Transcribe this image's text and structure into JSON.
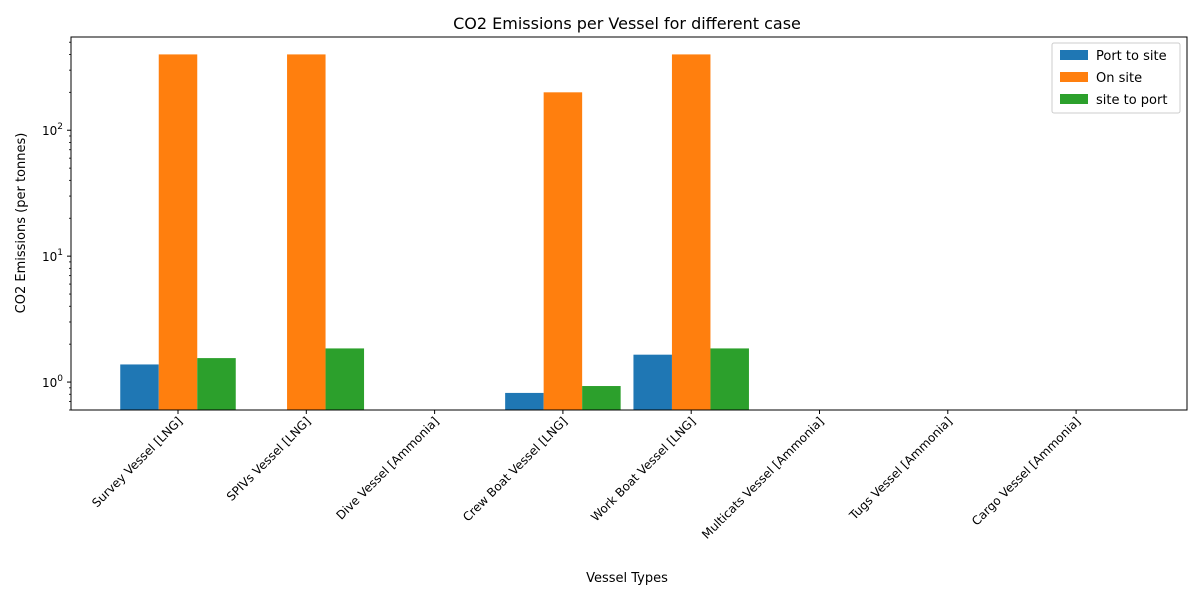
{
  "chart_data": {
    "type": "bar",
    "title": "CO2 Emissions per Vessel for different case",
    "xlabel": "Vessel Types",
    "ylabel": "CO2 Emissions (per tonnes)",
    "yscale": "log",
    "ylim": [
      0.6,
      550
    ],
    "yticks": [
      {
        "value": 1,
        "label": "10",
        "exp": "0"
      },
      {
        "value": 10,
        "label": "10",
        "exp": "1"
      },
      {
        "value": 100,
        "label": "10",
        "exp": "2"
      }
    ],
    "categories": [
      "Survey Vessel [LNG]",
      "SPIVs Vessel [LNG]",
      "Dive Vessel [Ammonia]",
      "Crew Boat Vessel [LNG]",
      "Work Boat Vessel [LNG]",
      "Multicats Vessel [Ammonia]",
      "Tugs Vessel [Ammonia]",
      "Cargo Vessel [Ammonia]"
    ],
    "series": [
      {
        "name": "Port to site",
        "color": "#1f77b4",
        "values": [
          1.38,
          0,
          0,
          0.82,
          1.65,
          0,
          0,
          0
        ]
      },
      {
        "name": "On site",
        "color": "#ff7f0e",
        "values": [
          400,
          400,
          0,
          200,
          400,
          0,
          0,
          0
        ]
      },
      {
        "name": "site to port",
        "color": "#2ca02c",
        "values": [
          1.55,
          1.85,
          0,
          0.93,
          1.85,
          0,
          0,
          0
        ]
      }
    ],
    "legend_position": "top-right",
    "grid": false
  }
}
